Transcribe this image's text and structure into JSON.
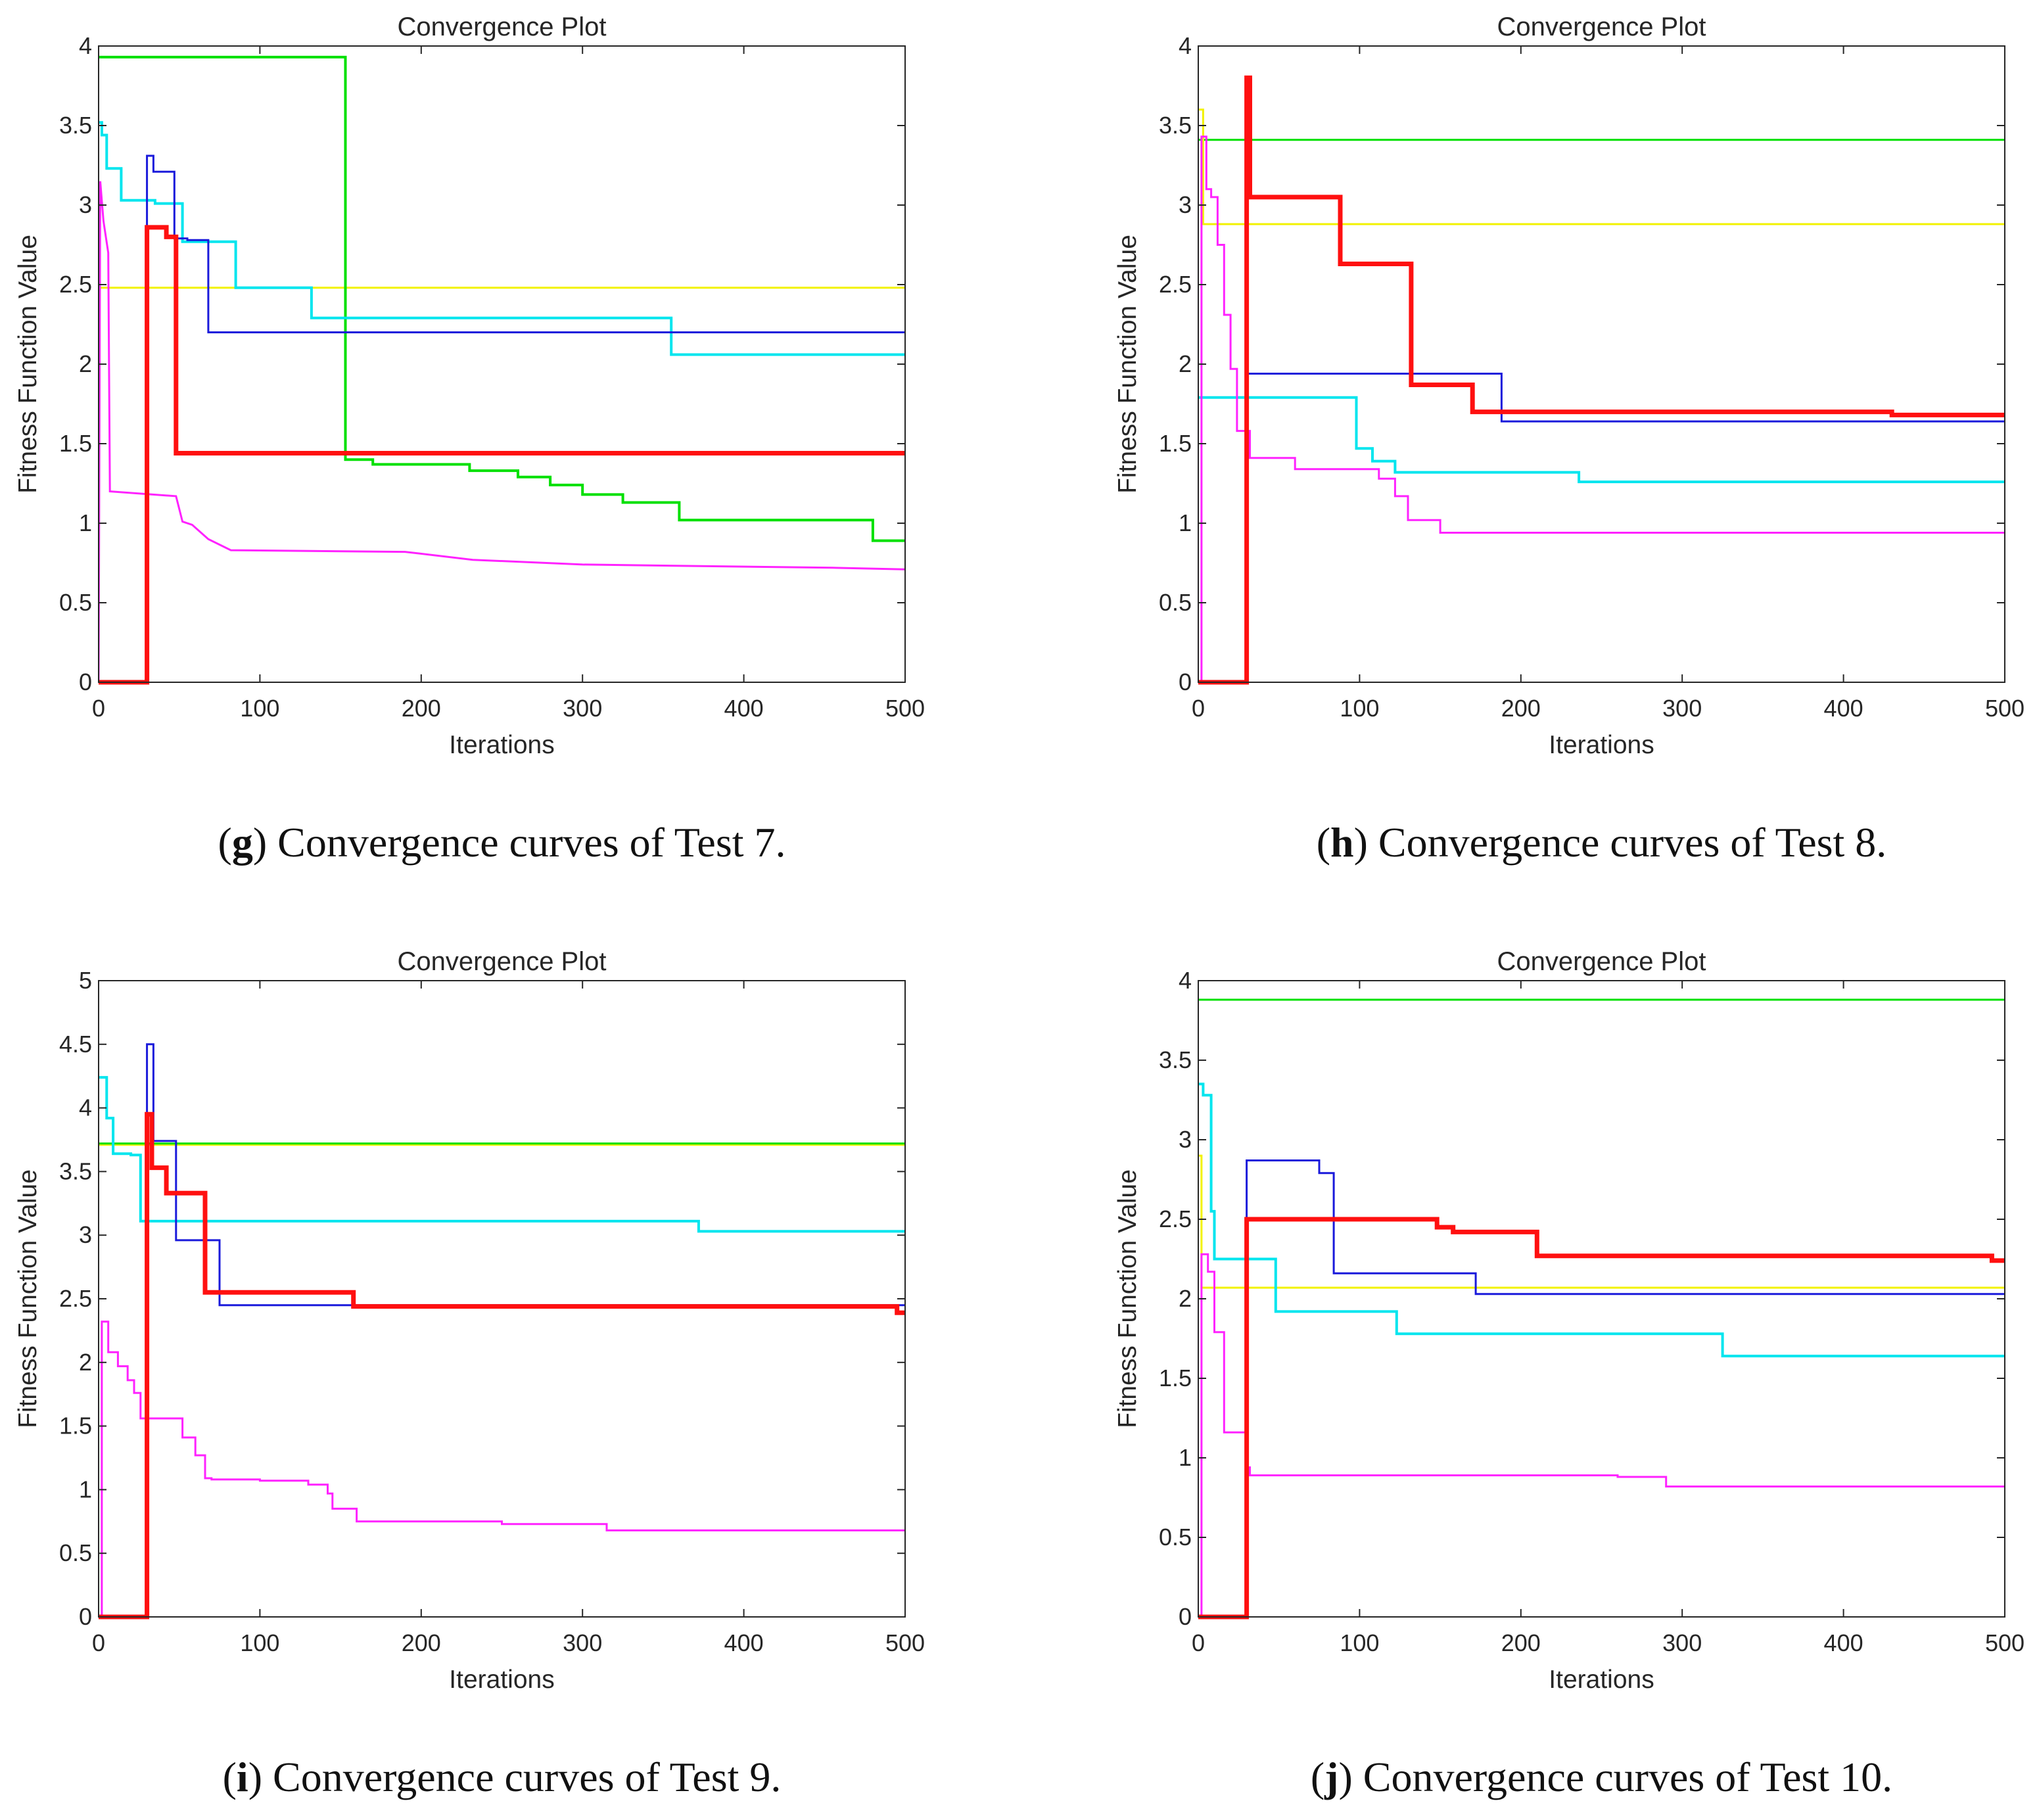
{
  "chart_data": [
    {
      "type": "line",
      "title": "Convergence Plot",
      "xlabel": "Iterations",
      "ylabel": "Fitness Function Value",
      "xlim": [
        0,
        500
      ],
      "ylim": [
        0,
        4
      ],
      "xticks": [
        0,
        100,
        200,
        300,
        400,
        500
      ],
      "yticks": [
        0,
        0.5,
        1,
        1.5,
        2,
        2.5,
        3,
        3.5,
        4
      ],
      "xtick_labels": [
        "0",
        "100",
        "200",
        "300",
        "400",
        "500"
      ],
      "ytick_labels": [
        "0",
        "0.5",
        "1",
        "1.5",
        "2",
        "2.5",
        "3",
        "3.5",
        "4"
      ],
      "caption": {
        "letter": "g",
        "text": " Convergence curves of Test 7."
      },
      "series": [
        {
          "name": "yellow",
          "color": "#f2f200",
          "width": 3,
          "x": [
            0,
            500
          ],
          "y": [
            2.48,
            2.48
          ]
        },
        {
          "name": "green",
          "color": "#00e000",
          "width": 4,
          "x": [
            0,
            152,
            153,
            170,
            230,
            260,
            280,
            300,
            325,
            360,
            480,
            500
          ],
          "y": [
            3.93,
            3.93,
            1.4,
            1.37,
            1.33,
            1.29,
            1.24,
            1.18,
            1.13,
            1.02,
            0.89,
            0.89
          ]
        },
        {
          "name": "magenta",
          "color": "#ff22ff",
          "width": 3,
          "x": [
            0,
            1,
            3,
            6,
            7,
            48,
            52,
            58,
            68,
            82,
            190,
            232,
            300,
            455,
            500
          ],
          "y": [
            0,
            3.15,
            2.9,
            2.7,
            1.2,
            1.17,
            1.01,
            0.99,
            0.9,
            0.83,
            0.82,
            0.77,
            0.74,
            0.72,
            0.71
          ],
          "step": false
        },
        {
          "name": "cyan",
          "color": "#00e5ee",
          "width": 4,
          "x": [
            0,
            2,
            5,
            14,
            35,
            52,
            85,
            132,
            355,
            500
          ],
          "y": [
            3.52,
            3.44,
            3.23,
            3.03,
            3.01,
            2.77,
            2.48,
            2.29,
            2.06,
            2.06
          ]
        },
        {
          "name": "blue",
          "color": "#1a1adb",
          "width": 3,
          "x": [
            0,
            29,
            30,
            34,
            47,
            55,
            68,
            500
          ],
          "y": [
            0,
            0,
            3.31,
            3.21,
            2.79,
            2.78,
            2.2,
            2.2
          ]
        },
        {
          "name": "red",
          "color": "#ff1010",
          "width": 7,
          "x": [
            0,
            29,
            30,
            42,
            48,
            500
          ],
          "y": [
            0,
            0,
            2.86,
            2.8,
            1.44,
            1.44
          ]
        }
      ]
    },
    {
      "type": "line",
      "title": "Convergence Plot",
      "xlabel": "Iterations",
      "ylabel": "Fitness Function Value",
      "xlim": [
        0,
        500
      ],
      "ylim": [
        0,
        4
      ],
      "xticks": [
        0,
        100,
        200,
        300,
        400,
        500
      ],
      "yticks": [
        0,
        0.5,
        1,
        1.5,
        2,
        2.5,
        3,
        3.5,
        4
      ],
      "xtick_labels": [
        "0",
        "100",
        "200",
        "300",
        "400",
        "500"
      ],
      "ytick_labels": [
        "0",
        "0.5",
        "1",
        "1.5",
        "2",
        "2.5",
        "3",
        "3.5",
        "4"
      ],
      "caption": {
        "letter": "h",
        "text": " Convergence curves of Test 8."
      },
      "series": [
        {
          "name": "green",
          "color": "#00e000",
          "width": 3,
          "x": [
            0,
            500
          ],
          "y": [
            3.41,
            3.41
          ]
        },
        {
          "name": "yellow",
          "color": "#f2f200",
          "width": 3,
          "x": [
            0,
            3,
            500
          ],
          "y": [
            3.6,
            2.88,
            2.88
          ]
        },
        {
          "name": "cyan",
          "color": "#00e5ee",
          "width": 4,
          "x": [
            0,
            98,
            108,
            122,
            236,
            500
          ],
          "y": [
            1.79,
            1.47,
            1.39,
            1.32,
            1.26,
            1.26
          ]
        },
        {
          "name": "magenta",
          "color": "#ff22ff",
          "width": 3,
          "x": [
            0,
            2,
            5,
            8,
            12,
            16,
            20,
            24,
            28,
            32,
            60,
            112,
            122,
            130,
            150,
            500
          ],
          "y": [
            0,
            3.43,
            3.1,
            3.05,
            2.75,
            2.31,
            1.97,
            1.58,
            1.58,
            1.41,
            1.34,
            1.28,
            1.17,
            1.02,
            0.94,
            0.94
          ]
        },
        {
          "name": "blue",
          "color": "#1a1adb",
          "width": 3,
          "x": [
            0,
            29,
            30,
            188,
            500
          ],
          "y": [
            0,
            0,
            1.94,
            1.64,
            1.64
          ]
        },
        {
          "name": "red",
          "color": "#ff1010",
          "width": 7,
          "x": [
            0,
            29,
            30,
            32,
            88,
            132,
            170,
            430,
            500
          ],
          "y": [
            0,
            0,
            3.8,
            3.05,
            2.63,
            1.87,
            1.7,
            1.68,
            1.68
          ]
        }
      ]
    },
    {
      "type": "line",
      "title": "Convergence Plot",
      "xlabel": "Iterations",
      "ylabel": "Fitness Function Value",
      "xlim": [
        0,
        500
      ],
      "ylim": [
        0,
        5
      ],
      "xticks": [
        0,
        100,
        200,
        300,
        400,
        500
      ],
      "yticks": [
        0,
        0.5,
        1,
        1.5,
        2,
        2.5,
        3,
        3.5,
        4,
        4.5,
        5
      ],
      "xtick_labels": [
        "0",
        "100",
        "200",
        "300",
        "400",
        "500"
      ],
      "ytick_labels": [
        "0",
        "0.5",
        "1",
        "1.5",
        "2",
        "2.5",
        "3",
        "3.5",
        "4",
        "4.5",
        "5"
      ],
      "caption": {
        "letter": "i",
        "text": " Convergence curves of Test 9."
      },
      "series": [
        {
          "name": "yellow",
          "color": "#f2f200",
          "width": 3,
          "x": [
            0,
            500
          ],
          "y": [
            3.71,
            3.71
          ]
        },
        {
          "name": "green",
          "color": "#00e000",
          "width": 3,
          "x": [
            0,
            500
          ],
          "y": [
            3.72,
            3.72
          ]
        },
        {
          "name": "cyan",
          "color": "#00e5ee",
          "width": 4,
          "x": [
            0,
            5,
            9,
            20,
            26,
            372,
            500
          ],
          "y": [
            4.24,
            3.92,
            3.64,
            3.63,
            3.11,
            3.03,
            3.03
          ]
        },
        {
          "name": "magenta",
          "color": "#ff22ff",
          "width": 3,
          "x": [
            0,
            2,
            6,
            12,
            18,
            22,
            26,
            30,
            52,
            60,
            66,
            70,
            100,
            130,
            142,
            145,
            160,
            250,
            315,
            500
          ],
          "y": [
            0,
            2.32,
            2.08,
            1.97,
            1.86,
            1.76,
            1.56,
            1.56,
            1.41,
            1.27,
            1.09,
            1.08,
            1.07,
            1.04,
            0.97,
            0.85,
            0.75,
            0.73,
            0.68,
            0.68
          ]
        },
        {
          "name": "blue",
          "color": "#1a1adb",
          "width": 3,
          "x": [
            0,
            29,
            30,
            34,
            48,
            75,
            500
          ],
          "y": [
            0,
            0,
            4.5,
            3.74,
            2.96,
            2.45,
            2.45
          ]
        },
        {
          "name": "red",
          "color": "#ff1010",
          "width": 7,
          "x": [
            0,
            29,
            30,
            33,
            42,
            66,
            158,
            495,
            500
          ],
          "y": [
            0,
            0,
            3.95,
            3.53,
            3.33,
            2.55,
            2.44,
            2.39,
            2.39
          ]
        }
      ]
    },
    {
      "type": "line",
      "title": "Convergence Plot",
      "xlabel": "Iterations",
      "ylabel": "Fitness Function Value",
      "xlim": [
        0,
        500
      ],
      "ylim": [
        0,
        4
      ],
      "xticks": [
        0,
        100,
        200,
        300,
        400,
        500
      ],
      "yticks": [
        0,
        0.5,
        1,
        1.5,
        2,
        2.5,
        3,
        3.5,
        4
      ],
      "xtick_labels": [
        "0",
        "100",
        "200",
        "300",
        "400",
        "500"
      ],
      "ytick_labels": [
        "0",
        "0.5",
        "1",
        "1.5",
        "2",
        "2.5",
        "3",
        "3.5",
        "4"
      ],
      "caption": {
        "letter": "j",
        "text": " Convergence curves of Test 10."
      },
      "series": [
        {
          "name": "green",
          "color": "#00e000",
          "width": 3,
          "x": [
            0,
            500
          ],
          "y": [
            3.88,
            3.88
          ]
        },
        {
          "name": "yellow",
          "color": "#f2f200",
          "width": 3,
          "x": [
            0,
            2,
            500
          ],
          "y": [
            2.9,
            2.07,
            2.07
          ]
        },
        {
          "name": "cyan",
          "color": "#00e5ee",
          "width": 4,
          "x": [
            0,
            3,
            8,
            10,
            14,
            48,
            123,
            325,
            500
          ],
          "y": [
            3.35,
            3.28,
            2.55,
            2.25,
            2.25,
            1.92,
            1.78,
            1.64,
            1.64
          ]
        },
        {
          "name": "magenta",
          "color": "#ff22ff",
          "width": 3,
          "x": [
            0,
            2,
            6,
            10,
            16,
            30,
            32,
            260,
            290,
            500
          ],
          "y": [
            0,
            2.28,
            2.17,
            1.79,
            1.16,
            0.94,
            0.89,
            0.88,
            0.82,
            0.82
          ]
        },
        {
          "name": "blue",
          "color": "#1a1adb",
          "width": 3,
          "x": [
            0,
            29,
            30,
            75,
            84,
            172,
            500
          ],
          "y": [
            0,
            0,
            2.87,
            2.79,
            2.16,
            2.03,
            2.03
          ]
        },
        {
          "name": "red",
          "color": "#ff1010",
          "width": 7,
          "x": [
            0,
            29,
            30,
            148,
            158,
            210,
            492,
            500
          ],
          "y": [
            0,
            0,
            2.5,
            2.45,
            2.42,
            2.27,
            2.24,
            2.24
          ]
        }
      ]
    }
  ]
}
